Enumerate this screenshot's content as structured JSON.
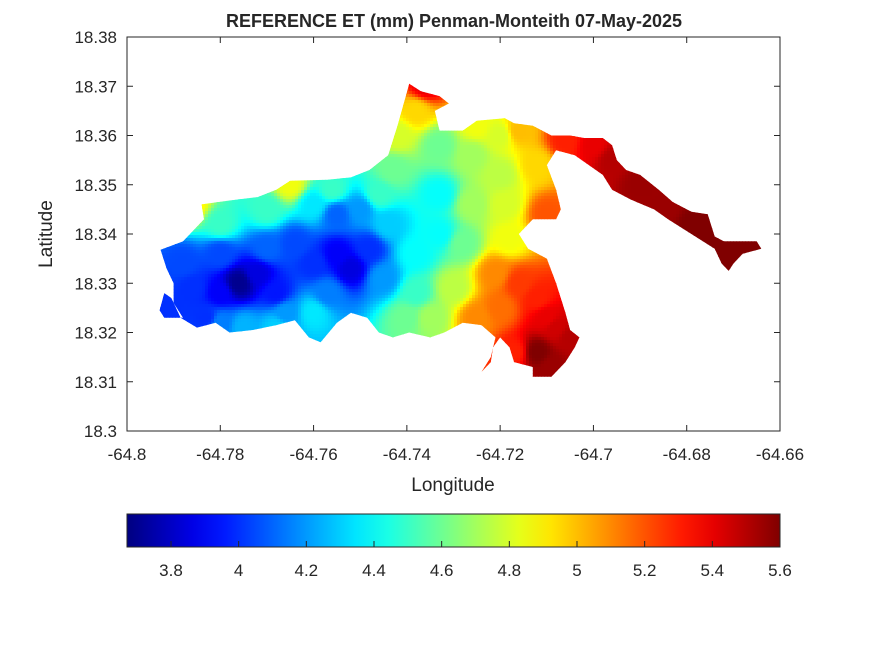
{
  "chart_data": {
    "type": "heatmap",
    "title": "REFERENCE ET (mm) Penman-Monteith 07-May-2025",
    "xlabel": "Longitude",
    "ylabel": "Latitude",
    "xlim": [
      -64.8,
      -64.66
    ],
    "ylim": [
      18.3,
      18.38
    ],
    "x_ticks": [
      -64.8,
      -64.78,
      -64.76,
      -64.74,
      -64.72,
      -64.7,
      -64.68,
      -64.66
    ],
    "x_tick_labels": [
      "-64.8",
      "-64.78",
      "-64.76",
      "-64.74",
      "-64.72",
      "-64.7",
      "-64.68",
      "-64.66"
    ],
    "y_ticks": [
      18.3,
      18.31,
      18.32,
      18.33,
      18.34,
      18.35,
      18.36,
      18.37,
      18.38
    ],
    "y_tick_labels": [
      "18.3",
      "18.31",
      "18.32",
      "18.33",
      "18.34",
      "18.35",
      "18.36",
      "18.37",
      "18.38"
    ],
    "colormap": "jet",
    "colorbar": {
      "location": "bottom",
      "range": [
        3.67,
        5.6
      ],
      "ticks": [
        3.8,
        4,
        4.2,
        4.4,
        4.6,
        4.8,
        5,
        5.2,
        5.4,
        5.6
      ],
      "tick_labels": [
        "3.8",
        "4",
        "4.2",
        "4.4",
        "4.6",
        "4.8",
        "5",
        "5.2",
        "5.4",
        "5.6"
      ]
    },
    "grid": false,
    "outline": [
      [
        -64.7928,
        18.3368
      ],
      [
        -64.788,
        18.3385
      ],
      [
        -64.7835,
        18.343
      ],
      [
        -64.784,
        18.346
      ],
      [
        -64.778,
        18.3468
      ],
      [
        -64.772,
        18.3475
      ],
      [
        -64.768,
        18.349
      ],
      [
        -64.765,
        18.3508
      ],
      [
        -64.757,
        18.351
      ],
      [
        -64.752,
        18.3515
      ],
      [
        -64.748,
        18.353
      ],
      [
        -64.744,
        18.356
      ],
      [
        -64.742,
        18.362
      ],
      [
        -64.74,
        18.3688
      ],
      [
        -64.7395,
        18.3705
      ],
      [
        -64.737,
        18.369
      ],
      [
        -64.733,
        18.368
      ],
      [
        -64.731,
        18.3665
      ],
      [
        -64.734,
        18.365
      ],
      [
        -64.733,
        18.361
      ],
      [
        -64.728,
        18.361
      ],
      [
        -64.725,
        18.363
      ],
      [
        -64.719,
        18.3635
      ],
      [
        -64.717,
        18.3625
      ],
      [
        -64.713,
        18.362
      ],
      [
        -64.709,
        18.36
      ],
      [
        -64.705,
        18.36
      ],
      [
        -64.702,
        18.3595
      ],
      [
        -64.698,
        18.3595
      ],
      [
        -64.696,
        18.358
      ],
      [
        -64.695,
        18.355
      ],
      [
        -64.693,
        18.353
      ],
      [
        -64.69,
        18.352
      ],
      [
        -64.686,
        18.349
      ],
      [
        -64.683,
        18.3465
      ],
      [
        -64.679,
        18.3445
      ],
      [
        -64.6755,
        18.344
      ],
      [
        -64.674,
        18.3395
      ],
      [
        -64.672,
        18.3385
      ],
      [
        -64.665,
        18.3385
      ],
      [
        -64.664,
        18.337
      ],
      [
        -64.668,
        18.336
      ],
      [
        -64.67,
        18.334
      ],
      [
        -64.671,
        18.3325
      ],
      [
        -64.6725,
        18.334
      ],
      [
        -64.674,
        18.337
      ],
      [
        -64.679,
        18.34
      ],
      [
        -64.684,
        18.343
      ],
      [
        -64.687,
        18.345
      ],
      [
        -64.692,
        18.347
      ],
      [
        -64.696,
        18.349
      ],
      [
        -64.698,
        18.352
      ],
      [
        -64.704,
        18.356
      ],
      [
        -64.708,
        18.357
      ],
      [
        -64.71,
        18.354
      ],
      [
        -64.708,
        18.349
      ],
      [
        -64.707,
        18.345
      ],
      [
        -64.708,
        18.343
      ],
      [
        -64.713,
        18.343
      ],
      [
        -64.716,
        18.34
      ],
      [
        -64.714,
        18.337
      ],
      [
        -64.71,
        18.335
      ],
      [
        -64.708,
        18.33
      ],
      [
        -64.706,
        18.324
      ],
      [
        -64.705,
        18.3205
      ],
      [
        -64.703,
        18.319
      ],
      [
        -64.704,
        18.317
      ],
      [
        -64.706,
        18.314
      ],
      [
        -64.709,
        18.311
      ],
      [
        -64.713,
        18.311
      ],
      [
        -64.713,
        18.313
      ],
      [
        -64.717,
        18.314
      ],
      [
        -64.718,
        18.317
      ],
      [
        -64.72,
        18.319
      ],
      [
        -64.7215,
        18.317
      ],
      [
        -64.722,
        18.314
      ],
      [
        -64.724,
        18.312
      ],
      [
        -64.722,
        18.315
      ],
      [
        -64.721,
        18.319
      ],
      [
        -64.724,
        18.3215
      ],
      [
        -64.728,
        18.322
      ],
      [
        -64.732,
        18.32
      ],
      [
        -64.735,
        18.319
      ],
      [
        -64.7395,
        18.32
      ],
      [
        -64.743,
        18.319
      ],
      [
        -64.746,
        18.32
      ],
      [
        -64.7485,
        18.323
      ],
      [
        -64.752,
        18.324
      ],
      [
        -64.755,
        18.322
      ],
      [
        -64.7585,
        18.318
      ],
      [
        -64.761,
        18.319
      ],
      [
        -64.764,
        18.3225
      ],
      [
        -64.768,
        18.3215
      ],
      [
        -64.773,
        18.3205
      ],
      [
        -64.778,
        18.32
      ],
      [
        -64.781,
        18.322
      ],
      [
        -64.785,
        18.321
      ],
      [
        -64.7885,
        18.323
      ],
      [
        -64.7905,
        18.327
      ],
      [
        -64.792,
        18.328
      ],
      [
        -64.793,
        18.3245
      ],
      [
        -64.792,
        18.323
      ],
      [
        -64.788,
        18.323
      ],
      [
        -64.79,
        18.326
      ],
      [
        -64.79,
        18.33
      ],
      [
        -64.7915,
        18.333
      ],
      [
        -64.7928,
        18.3368
      ]
    ],
    "field_points": [
      [
        -64.776,
        18.33,
        3.7
      ],
      [
        -64.772,
        18.332,
        3.85
      ],
      [
        -64.78,
        18.328,
        3.9
      ],
      [
        -64.786,
        18.329,
        4.0
      ],
      [
        -64.788,
        18.334,
        4.05
      ],
      [
        -64.792,
        18.324,
        4.0
      ],
      [
        -64.78,
        18.336,
        4.05
      ],
      [
        -64.78,
        18.322,
        4.15
      ],
      [
        -64.77,
        18.337,
        4.1
      ],
      [
        -64.768,
        18.328,
        3.95
      ],
      [
        -64.766,
        18.324,
        4.2
      ],
      [
        -64.764,
        18.338,
        4.05
      ],
      [
        -64.76,
        18.334,
        4.0
      ],
      [
        -64.755,
        18.336,
        3.9
      ],
      [
        -64.752,
        18.333,
        3.85
      ],
      [
        -64.748,
        18.337,
        4.0
      ],
      [
        -64.745,
        18.331,
        4.2
      ],
      [
        -64.757,
        18.328,
        4.15
      ],
      [
        -64.76,
        18.324,
        4.35
      ],
      [
        -64.755,
        18.344,
        4.1
      ],
      [
        -64.75,
        18.345,
        4.2
      ],
      [
        -64.744,
        18.342,
        4.3
      ],
      [
        -64.76,
        18.346,
        4.35
      ],
      [
        -64.77,
        18.345,
        4.5
      ],
      [
        -64.78,
        18.342,
        4.5
      ],
      [
        -64.786,
        18.346,
        4.9
      ],
      [
        -64.765,
        18.35,
        4.85
      ],
      [
        -64.756,
        18.349,
        4.5
      ],
      [
        -64.746,
        18.348,
        4.5
      ],
      [
        -64.743,
        18.353,
        4.6
      ],
      [
        -64.742,
        18.36,
        4.8
      ],
      [
        -64.738,
        18.365,
        4.95
      ],
      [
        -64.736,
        18.37,
        5.4
      ],
      [
        -64.733,
        18.358,
        4.6
      ],
      [
        -64.733,
        18.348,
        4.4
      ],
      [
        -64.733,
        18.34,
        4.4
      ],
      [
        -64.738,
        18.336,
        4.4
      ],
      [
        -64.738,
        18.328,
        4.5
      ],
      [
        -64.74,
        18.323,
        4.6
      ],
      [
        -64.735,
        18.323,
        4.7
      ],
      [
        -64.73,
        18.329,
        4.75
      ],
      [
        -64.728,
        18.338,
        4.6
      ],
      [
        -64.726,
        18.346,
        4.7
      ],
      [
        -64.726,
        18.356,
        4.7
      ],
      [
        -64.725,
        18.362,
        4.85
      ],
      [
        -64.72,
        18.36,
        4.8
      ],
      [
        -64.72,
        18.352,
        4.75
      ],
      [
        -64.719,
        18.346,
        4.8
      ],
      [
        -64.718,
        18.339,
        4.85
      ],
      [
        -64.716,
        18.361,
        5.0
      ],
      [
        -64.712,
        18.354,
        4.95
      ],
      [
        -64.71,
        18.344,
        5.2
      ],
      [
        -64.721,
        18.332,
        5.1
      ],
      [
        -64.716,
        18.33,
        5.25
      ],
      [
        -64.712,
        18.327,
        5.3
      ],
      [
        -64.71,
        18.323,
        5.4
      ],
      [
        -64.708,
        18.321,
        5.45
      ],
      [
        -64.705,
        18.319,
        5.5
      ],
      [
        -64.712,
        18.316,
        5.6
      ],
      [
        -64.709,
        18.313,
        5.55
      ],
      [
        -64.717,
        18.316,
        5.3
      ],
      [
        -64.72,
        18.325,
        5.15
      ],
      [
        -64.725,
        18.323,
        5.1
      ],
      [
        -64.706,
        18.359,
        5.3
      ],
      [
        -64.7,
        18.358,
        5.4
      ],
      [
        -64.696,
        18.355,
        5.5
      ],
      [
        -64.69,
        18.35,
        5.55
      ],
      [
        -64.684,
        18.345,
        5.55
      ],
      [
        -64.679,
        18.342,
        5.6
      ],
      [
        -64.673,
        18.338,
        5.6
      ],
      [
        -64.668,
        18.337,
        5.6
      ],
      [
        -64.672,
        18.334,
        5.6
      ],
      [
        -64.783,
        18.323,
        4.0
      ],
      [
        -64.775,
        18.321,
        4.25
      ],
      [
        -64.768,
        18.321,
        4.3
      ]
    ]
  }
}
